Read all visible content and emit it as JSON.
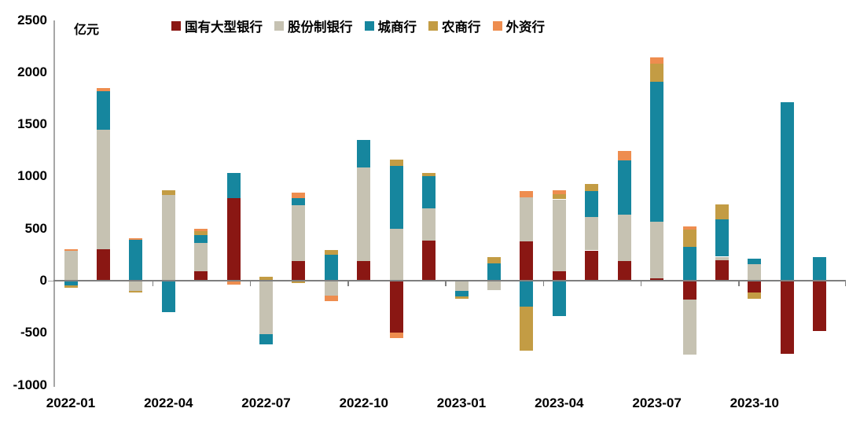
{
  "y_axis": {
    "unit_label": "亿元",
    "ticks": [
      2500,
      2000,
      1500,
      1000,
      500,
      0,
      -500,
      -1000
    ],
    "min": -1000,
    "max": 2500
  },
  "x_axis": {
    "labels": [
      "2022-01",
      "2022-04",
      "2022-07",
      "2022-10",
      "2023-01",
      "2023-04",
      "2023-07",
      "2023-10"
    ]
  },
  "legend": [
    {
      "label": "国有大型银行",
      "color": "#8A1713"
    },
    {
      "label": "股份制银行",
      "color": "#C6C2B2"
    },
    {
      "label": "城商行",
      "color": "#16869E"
    },
    {
      "label": "农商行",
      "color": "#C39C44"
    },
    {
      "label": "外资行",
      "color": "#EE8D4F"
    }
  ],
  "colors": {
    "axis": "#a6a6a6",
    "zero_line": "#7f7f7f",
    "background": "#ffffff",
    "text": "#000000"
  },
  "chart_data": {
    "type": "bar",
    "stacked": true,
    "title": "",
    "xlabel": "",
    "ylabel": "亿元",
    "ylim": [
      -1000,
      2500
    ],
    "grid": false,
    "legend_position": "top",
    "categories": [
      "2022-01",
      "2022-02",
      "2022-03",
      "2022-04",
      "2022-05",
      "2022-06",
      "2022-07",
      "2022-08",
      "2022-09",
      "2022-10",
      "2022-11",
      "2022-12",
      "2023-01",
      "2023-02",
      "2023-03",
      "2023-04",
      "2023-05",
      "2023-06",
      "2023-07",
      "2023-08",
      "2023-09",
      "2023-10",
      "2023-11",
      "2023-12"
    ],
    "series": [
      {
        "name": "国有大型银行",
        "color": "#8A1713",
        "values": [
          0,
          300,
          0,
          0,
          90,
          790,
          0,
          190,
          0,
          190,
          -500,
          385,
          0,
          0,
          380,
          90,
          290,
          190,
          20,
          -180,
          200,
          -110,
          -700,
          -480
        ]
      },
      {
        "name": "股份制银行",
        "color": "#C6C2B2",
        "values": [
          290,
          1150,
          -100,
          820,
          270,
          0,
          -510,
          535,
          -145,
          895,
          495,
          310,
          -100,
          -90,
          420,
          690,
          320,
          445,
          545,
          -530,
          30,
          160,
          0,
          0
        ]
      },
      {
        "name": "城商行",
        "color": "#16869E",
        "values": [
          -45,
          370,
          390,
          -300,
          75,
          240,
          -100,
          70,
          250,
          265,
          605,
          310,
          -50,
          170,
          -250,
          -340,
          250,
          520,
          1340,
          325,
          360,
          50,
          1710,
          230
        ]
      },
      {
        "name": "农商行",
        "color": "#C39C44",
        "values": [
          -20,
          0,
          -15,
          50,
          40,
          0,
          40,
          -20,
          45,
          0,
          60,
          25,
          -20,
          60,
          -420,
          50,
          65,
          0,
          175,
          165,
          140,
          -60,
          0,
          0
        ]
      },
      {
        "name": "外资行",
        "color": "#EE8D4F",
        "values": [
          15,
          30,
          15,
          0,
          20,
          -40,
          0,
          50,
          -50,
          0,
          -50,
          0,
          0,
          0,
          60,
          40,
          0,
          90,
          60,
          30,
          0,
          0,
          0,
          0
        ]
      }
    ]
  }
}
